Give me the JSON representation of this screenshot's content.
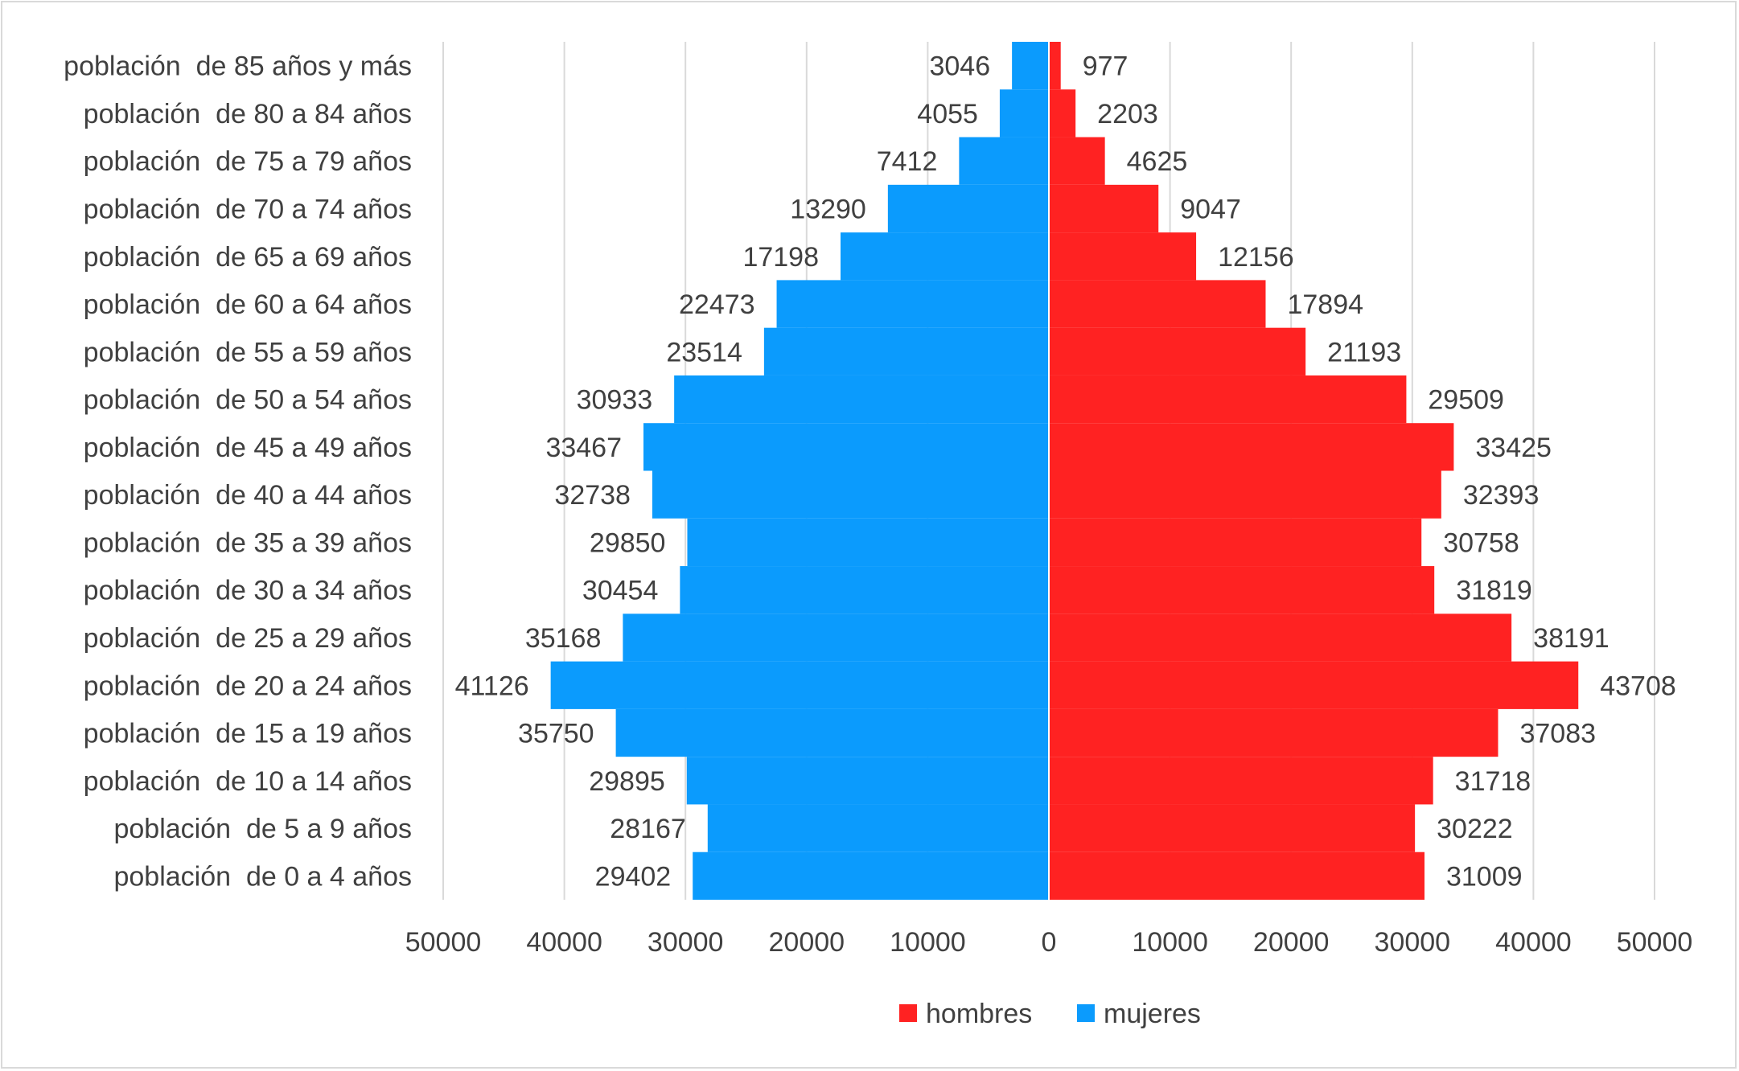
{
  "chart_data": {
    "type": "bar",
    "orientation": "horizontal",
    "subtype": "population-pyramid",
    "title": "",
    "xlabel": "",
    "ylabel": "",
    "xlim": [
      -50000,
      50000
    ],
    "x_ticks": [
      "50000",
      "40000",
      "30000",
      "20000",
      "10000",
      "0",
      "10000",
      "20000",
      "30000",
      "40000",
      "50000"
    ],
    "grid": "vertical",
    "legend_position": "bottom",
    "categories": [
      "población  de 85 años y más",
      "población  de 80 a 84 años",
      "población  de 75 a 79 años",
      "población  de 70 a 74 años",
      "población  de 65 a 69 años",
      "población  de 60 a 64 años",
      "población  de 55 a 59 años",
      "población  de 50 a 54 años",
      "población  de 45 a 49 años",
      "población  de 40 a 44 años",
      "población  de 35 a 39 años",
      "población  de 30 a 34 años",
      "población  de 25 a 29 años",
      "población  de 20 a 24 años",
      "población  de 15 a 19 años",
      "población  de 10 a 14 años",
      "población  de 5 a 9 años",
      "población  de 0 a 4 años"
    ],
    "series": [
      {
        "name": "hombres",
        "side": "right",
        "color": "#ff2222",
        "values": [
          977,
          2203,
          4625,
          9047,
          12156,
          17894,
          21193,
          29509,
          33425,
          32393,
          30758,
          31819,
          38191,
          43708,
          37083,
          31718,
          30222,
          31009
        ]
      },
      {
        "name": "mujeres",
        "side": "left",
        "color": "#0b9bfd",
        "values": [
          3046,
          4055,
          7412,
          13290,
          17198,
          22473,
          23514,
          30933,
          33467,
          32738,
          29850,
          30454,
          35168,
          41126,
          35750,
          29895,
          28167,
          29402
        ]
      }
    ],
    "colors": {
      "grid": "#d9d9d9",
      "text": "#404040",
      "border": "#d9d9d9"
    }
  }
}
